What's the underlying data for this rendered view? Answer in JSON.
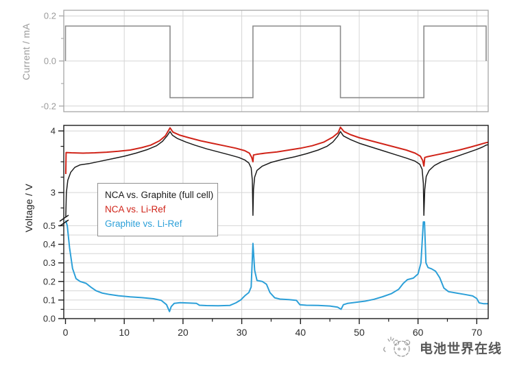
{
  "figure": {
    "background": "#ffffff",
    "grid_color": "#d4d4d4"
  },
  "watermark": {
    "text": "电池世界在线",
    "logo": "sketch-animal-doodle-logo",
    "color": "#3f3f3f"
  },
  "chart_data": [
    {
      "id": "current_panel",
      "type": "line",
      "title": "",
      "xlabel": "",
      "ylabel": "Current / mA",
      "xlim": [
        -0.29,
        71.95
      ],
      "ylim": [
        -0.225,
        0.225
      ],
      "grid": true,
      "axis_color": "#a6a6a6",
      "label_color": "#9a9a9a",
      "x_major_ticks": [
        0,
        10,
        20,
        30,
        40,
        50,
        60,
        70
      ],
      "x_tick_labels": [],
      "y_major_ticks": [
        0.2,
        0.0,
        -0.2
      ],
      "y_tick_labels": [
        "0.2",
        "0.0",
        "-0.2"
      ],
      "y_minor_ticks": [
        0.1,
        -0.1
      ],
      "series": [
        {
          "name": "cycling-current",
          "color": "#8a8a8a",
          "width": 1.6,
          "points": [
            [
              0,
              0.0
            ],
            [
              0,
              0.155
            ],
            [
              17.8,
              0.155
            ],
            [
              17.8,
              -0.163
            ],
            [
              31.9,
              -0.163
            ],
            [
              31.9,
              0.155
            ],
            [
              46.8,
              0.155
            ],
            [
              46.8,
              -0.163
            ],
            [
              61.0,
              -0.163
            ],
            [
              61.0,
              0.155
            ],
            [
              71.6,
              0.155
            ],
            [
              71.6,
              0.0
            ]
          ]
        }
      ]
    },
    {
      "id": "voltage_panel",
      "type": "line",
      "title": "",
      "xlabel": "",
      "ylabel": "Voltage / V",
      "xlim": [
        -0.29,
        71.95
      ],
      "broken_y_axis": {
        "lower_range": [
          0.0,
          0.52
        ],
        "upper_range": [
          2.6,
          4.09
        ]
      },
      "grid": true,
      "axis_color": "#1a1a1a",
      "label_color": "#2b2b2b",
      "x_major_ticks": [
        0,
        10,
        20,
        30,
        40,
        50,
        60,
        70
      ],
      "x_minor_ticks": [
        5,
        15,
        25,
        35,
        45,
        55,
        65
      ],
      "x_tick_labels": [
        "0",
        "10",
        "20",
        "30",
        "40",
        "50",
        "60",
        "70"
      ],
      "y_upper_major_ticks": [
        3,
        4
      ],
      "y_upper_tick_labels": [
        "3",
        "4"
      ],
      "y_upper_minor_ticks": [
        2.75,
        3.25,
        3.5,
        3.75
      ],
      "y_upper_gridlines": [
        3.0,
        3.5,
        4.0
      ],
      "y_lower_major_ticks": [
        0.0,
        0.1,
        0.2,
        0.3,
        0.4,
        0.5
      ],
      "y_lower_tick_labels": [
        "0.0",
        "0.1",
        "0.2",
        "0.3",
        "0.4",
        "0.5"
      ],
      "y_lower_minor_ticks": [
        0.05,
        0.15,
        0.25,
        0.35,
        0.45
      ],
      "y_lower_gridlines": [
        0.05,
        0.1,
        0.15,
        0.2,
        0.25,
        0.3,
        0.35,
        0.4,
        0.45,
        0.5
      ],
      "legend": {
        "position": "upper-left",
        "entries": [
          {
            "label": "NCA vs. Graphite (full cell)",
            "color": "#1a1a1a"
          },
          {
            "label": "NCA vs. Li-Ref",
            "color": "#d02318"
          },
          {
            "label": "Graphite vs. Li-Ref",
            "color": "#2b9fd8"
          }
        ]
      },
      "series": [
        {
          "name": "nca-vs-graphite-full-cell",
          "color": "#1a1a1a",
          "width": 1.5,
          "points": [
            [
              0.05,
              2.6
            ],
            [
              0.15,
              3.0
            ],
            [
              0.4,
              3.2
            ],
            [
              0.9,
              3.33
            ],
            [
              1.6,
              3.41
            ],
            [
              2.5,
              3.45
            ],
            [
              4,
              3.47
            ],
            [
              6,
              3.51
            ],
            [
              8,
              3.55
            ],
            [
              10,
              3.59
            ],
            [
              12,
              3.64
            ],
            [
              14,
              3.7
            ],
            [
              15.5,
              3.76
            ],
            [
              16.5,
              3.83
            ],
            [
              17.3,
              3.92
            ],
            [
              17.8,
              3.99
            ],
            [
              18.2,
              3.93
            ],
            [
              19,
              3.88
            ],
            [
              20.5,
              3.82
            ],
            [
              22,
              3.77
            ],
            [
              24,
              3.71
            ],
            [
              26,
              3.66
            ],
            [
              28,
              3.61
            ],
            [
              29.5,
              3.57
            ],
            [
              30.5,
              3.53
            ],
            [
              31.2,
              3.48
            ],
            [
              31.6,
              3.4
            ],
            [
              31.8,
              3.2
            ],
            [
              31.9,
              2.63
            ],
            [
              32.0,
              3.05
            ],
            [
              32.2,
              3.25
            ],
            [
              32.6,
              3.36
            ],
            [
              33.5,
              3.43
            ],
            [
              35,
              3.49
            ],
            [
              37,
              3.54
            ],
            [
              39,
              3.58
            ],
            [
              41,
              3.63
            ],
            [
              43,
              3.69
            ],
            [
              44.5,
              3.75
            ],
            [
              45.5,
              3.82
            ],
            [
              46.3,
              3.91
            ],
            [
              46.8,
              3.99
            ],
            [
              47.3,
              3.92
            ],
            [
              48.5,
              3.86
            ],
            [
              50,
              3.8
            ],
            [
              52,
              3.74
            ],
            [
              54,
              3.68
            ],
            [
              56,
              3.62
            ],
            [
              58,
              3.56
            ],
            [
              59.5,
              3.51
            ],
            [
              60.3,
              3.46
            ],
            [
              60.7,
              3.38
            ],
            [
              60.9,
              3.15
            ],
            [
              61.0,
              2.63
            ],
            [
              61.15,
              3.05
            ],
            [
              61.4,
              3.26
            ],
            [
              61.9,
              3.36
            ],
            [
              62.8,
              3.44
            ],
            [
              64,
              3.5
            ],
            [
              65.5,
              3.55
            ],
            [
              67,
              3.6
            ],
            [
              68.5,
              3.65
            ],
            [
              70,
              3.7
            ],
            [
              71,
              3.74
            ],
            [
              71.6,
              3.77
            ],
            [
              72.2,
              3.78
            ]
          ]
        },
        {
          "name": "nca-vs-li-ref",
          "color": "#d02318",
          "width": 2.0,
          "points": [
            [
              0.05,
              3.3
            ],
            [
              0.1,
              3.65
            ],
            [
              1,
              3.645
            ],
            [
              3,
              3.64
            ],
            [
              5,
              3.645
            ],
            [
              7,
              3.655
            ],
            [
              9,
              3.67
            ],
            [
              11,
              3.69
            ],
            [
              13,
              3.73
            ],
            [
              14.5,
              3.77
            ],
            [
              16,
              3.84
            ],
            [
              17,
              3.92
            ],
            [
              17.8,
              4.05
            ],
            [
              18.3,
              3.98
            ],
            [
              19.5,
              3.93
            ],
            [
              21,
              3.89
            ],
            [
              23,
              3.84
            ],
            [
              25,
              3.8
            ],
            [
              27,
              3.76
            ],
            [
              29,
              3.72
            ],
            [
              30.5,
              3.68
            ],
            [
              31.3,
              3.64
            ],
            [
              31.7,
              3.57
            ],
            [
              31.9,
              3.5
            ],
            [
              32.0,
              3.61
            ],
            [
              32.5,
              3.62
            ],
            [
              34,
              3.64
            ],
            [
              36,
              3.66
            ],
            [
              38,
              3.69
            ],
            [
              40,
              3.72
            ],
            [
              42,
              3.76
            ],
            [
              44,
              3.82
            ],
            [
              45.5,
              3.9
            ],
            [
              46.4,
              3.97
            ],
            [
              46.8,
              4.06
            ],
            [
              47.4,
              3.99
            ],
            [
              48.5,
              3.94
            ],
            [
              50,
              3.89
            ],
            [
              52,
              3.84
            ],
            [
              54,
              3.79
            ],
            [
              56,
              3.74
            ],
            [
              58,
              3.69
            ],
            [
              59.5,
              3.64
            ],
            [
              60.4,
              3.59
            ],
            [
              60.8,
              3.52
            ],
            [
              61.0,
              3.43
            ],
            [
              61.15,
              3.57
            ],
            [
              61.5,
              3.58
            ],
            [
              63,
              3.61
            ],
            [
              65,
              3.65
            ],
            [
              67,
              3.69
            ],
            [
              69,
              3.74
            ],
            [
              70.5,
              3.78
            ],
            [
              71.6,
              3.81
            ],
            [
              72.2,
              3.82
            ]
          ]
        },
        {
          "name": "graphite-vs-li-ref",
          "color": "#2b9fd8",
          "width": 2.0,
          "points": [
            [
              0.05,
              1.2
            ],
            [
              0.1,
              0.62
            ],
            [
              0.3,
              0.5
            ],
            [
              0.7,
              0.38
            ],
            [
              1.2,
              0.27
            ],
            [
              1.8,
              0.215
            ],
            [
              2.5,
              0.2
            ],
            [
              3.5,
              0.19
            ],
            [
              4.3,
              0.17
            ],
            [
              5.2,
              0.15
            ],
            [
              6.2,
              0.138
            ],
            [
              7.5,
              0.13
            ],
            [
              9,
              0.123
            ],
            [
              11,
              0.117
            ],
            [
              13,
              0.113
            ],
            [
              15,
              0.107
            ],
            [
              16.3,
              0.098
            ],
            [
              17.2,
              0.075
            ],
            [
              17.7,
              0.038
            ],
            [
              18.0,
              0.065
            ],
            [
              18.5,
              0.082
            ],
            [
              19.5,
              0.086
            ],
            [
              21,
              0.084
            ],
            [
              22.3,
              0.082
            ],
            [
              22.8,
              0.072
            ],
            [
              24,
              0.07
            ],
            [
              26,
              0.069
            ],
            [
              28,
              0.071
            ],
            [
              29,
              0.085
            ],
            [
              29.8,
              0.1
            ],
            [
              30.6,
              0.125
            ],
            [
              31.2,
              0.14
            ],
            [
              31.6,
              0.17
            ],
            [
              31.9,
              0.405
            ],
            [
              32.2,
              0.26
            ],
            [
              32.6,
              0.205
            ],
            [
              33.5,
              0.2
            ],
            [
              34.2,
              0.185
            ],
            [
              34.8,
              0.14
            ],
            [
              35.6,
              0.112
            ],
            [
              36.5,
              0.105
            ],
            [
              38,
              0.102
            ],
            [
              39.3,
              0.098
            ],
            [
              39.9,
              0.075
            ],
            [
              41,
              0.072
            ],
            [
              43,
              0.071
            ],
            [
              45,
              0.068
            ],
            [
              46.3,
              0.062
            ],
            [
              46.9,
              0.05
            ],
            [
              47.3,
              0.075
            ],
            [
              48,
              0.082
            ],
            [
              49.5,
              0.088
            ],
            [
              51,
              0.094
            ],
            [
              52.5,
              0.104
            ],
            [
              54,
              0.118
            ],
            [
              55.5,
              0.135
            ],
            [
              56.7,
              0.158
            ],
            [
              57.5,
              0.19
            ],
            [
              58.2,
              0.21
            ],
            [
              59.2,
              0.218
            ],
            [
              60.0,
              0.24
            ],
            [
              60.5,
              0.3
            ],
            [
              60.9,
              0.56
            ],
            [
              61.1,
              0.56
            ],
            [
              61.35,
              0.3
            ],
            [
              61.7,
              0.275
            ],
            [
              62.3,
              0.268
            ],
            [
              63.0,
              0.255
            ],
            [
              63.7,
              0.22
            ],
            [
              64.4,
              0.165
            ],
            [
              65.2,
              0.145
            ],
            [
              66.5,
              0.138
            ],
            [
              68,
              0.13
            ],
            [
              69.3,
              0.122
            ],
            [
              70.0,
              0.108
            ],
            [
              70.4,
              0.085
            ],
            [
              71.2,
              0.08
            ],
            [
              72.2,
              0.08
            ]
          ]
        }
      ]
    }
  ]
}
